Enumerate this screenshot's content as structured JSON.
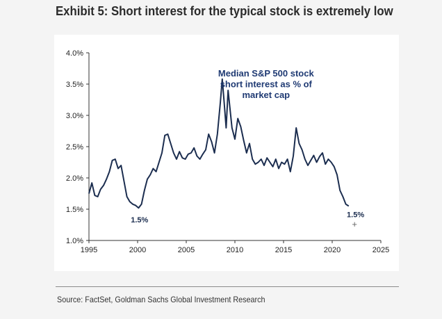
{
  "header": {
    "title": "Exhibit 5: Short interest for the typical stock is extremely low"
  },
  "footer": {
    "source": "Source: FactSet, Goldman Sachs Global Investment Research"
  },
  "colors": {
    "line": "#1b2d4f",
    "annotation": "#1f3a73",
    "axis": "#333333"
  },
  "chart_data": {
    "type": "line",
    "title": "",
    "xlabel": "",
    "ylabel": "",
    "xlim": [
      1995,
      2025
    ],
    "ylim": [
      1.0,
      4.0
    ],
    "x_ticks": [
      1995,
      2000,
      2005,
      2010,
      2015,
      2020,
      2025
    ],
    "x_tick_labels": [
      "1995",
      "2000",
      "2005",
      "2010",
      "2015",
      "2020",
      "2025"
    ],
    "y_ticks": [
      1.0,
      1.5,
      2.0,
      2.5,
      3.0,
      3.5,
      4.0
    ],
    "y_tick_labels": [
      "1.0%",
      "1.5%",
      "2.0%",
      "2.5%",
      "3.0%",
      "3.5%",
      "4.0%"
    ],
    "grid": false,
    "series": [
      {
        "name": "Median S&P 500 stock short interest as % of market cap",
        "x": [
          1995.0,
          1995.3,
          1995.6,
          1995.9,
          1996.2,
          1996.5,
          1996.8,
          1997.1,
          1997.4,
          1997.7,
          1998.0,
          1998.3,
          1998.6,
          1998.9,
          1999.2,
          1999.5,
          1999.8,
          2000.1,
          2000.4,
          2000.7,
          2001.0,
          2001.3,
          2001.6,
          2001.9,
          2002.2,
          2002.5,
          2002.8,
          2003.1,
          2003.4,
          2003.7,
          2004.0,
          2004.3,
          2004.6,
          2004.9,
          2005.2,
          2005.5,
          2005.8,
          2006.1,
          2006.4,
          2006.7,
          2007.0,
          2007.3,
          2007.6,
          2007.9,
          2008.2,
          2008.5,
          2008.7,
          2008.9,
          2009.1,
          2009.3,
          2009.5,
          2009.7,
          2010.0,
          2010.3,
          2010.6,
          2010.9,
          2011.2,
          2011.5,
          2011.8,
          2012.1,
          2012.4,
          2012.7,
          2013.0,
          2013.3,
          2013.6,
          2013.9,
          2014.2,
          2014.5,
          2014.8,
          2015.1,
          2015.4,
          2015.7,
          2016.0,
          2016.3,
          2016.6,
          2016.9,
          2017.2,
          2017.5,
          2017.8,
          2018.1,
          2018.4,
          2018.7,
          2019.0,
          2019.3,
          2019.6,
          2019.9,
          2020.2,
          2020.5,
          2020.8,
          2021.1,
          2021.4,
          2021.7
        ],
        "values": [
          1.75,
          1.92,
          1.72,
          1.7,
          1.82,
          1.88,
          1.98,
          2.1,
          2.28,
          2.3,
          2.15,
          2.2,
          1.95,
          1.7,
          1.62,
          1.58,
          1.56,
          1.52,
          1.58,
          1.8,
          1.98,
          2.05,
          2.15,
          2.1,
          2.25,
          2.4,
          2.68,
          2.7,
          2.55,
          2.4,
          2.3,
          2.42,
          2.32,
          2.3,
          2.38,
          2.4,
          2.48,
          2.35,
          2.3,
          2.38,
          2.45,
          2.7,
          2.58,
          2.4,
          2.7,
          3.2,
          3.58,
          3.2,
          2.8,
          3.4,
          3.1,
          2.8,
          2.62,
          2.95,
          2.82,
          2.6,
          2.4,
          2.55,
          2.3,
          2.22,
          2.25,
          2.3,
          2.2,
          2.32,
          2.25,
          2.18,
          2.3,
          2.15,
          2.25,
          2.22,
          2.3,
          2.1,
          2.35,
          2.8,
          2.55,
          2.45,
          2.3,
          2.2,
          2.28,
          2.36,
          2.25,
          2.34,
          2.4,
          2.22,
          2.3,
          2.25,
          2.18,
          2.05,
          1.8,
          1.7,
          1.58,
          1.55
        ]
      }
    ],
    "annotations": [
      {
        "text": "Median S&P 500 stock",
        "x": 2013.2,
        "y": 3.62
      },
      {
        "text": "short interest as % of",
        "x": 2013.2,
        "y": 3.45
      },
      {
        "text": "market cap",
        "x": 2013.2,
        "y": 3.28
      },
      {
        "text": "1.5%",
        "x": 2000.2,
        "y": 1.29
      },
      {
        "text": "1.5%",
        "x": 2022.4,
        "y": 1.37
      },
      {
        "text": "+",
        "x": 2022.3,
        "y": 1.21
      }
    ]
  }
}
